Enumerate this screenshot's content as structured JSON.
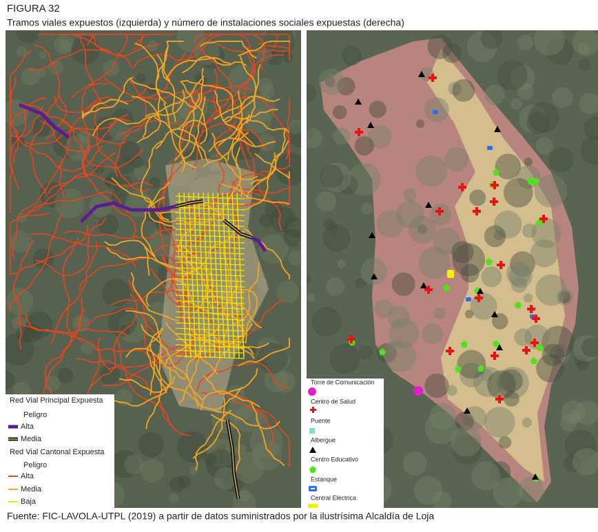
{
  "header": {
    "title": "FIGURA 32",
    "subtitle": "Tramos viales expuestos (izquierda) y número de instalaciones sociales expuestas (derecha)"
  },
  "left_map": {
    "legend": {
      "groups": [
        {
          "title": "Red Vial Principal Expuesta",
          "subtitle": "Peligro",
          "items": [
            "Alta",
            "Media"
          ]
        },
        {
          "title": "Red Vial Cantonal Expuesta",
          "subtitle": "Peligro",
          "items": [
            "Alta",
            "Media",
            "Baja"
          ]
        }
      ]
    }
  },
  "right_map": {
    "legend": {
      "items": [
        "Torre de Comunicación",
        "Centro de Salud",
        "Puente",
        "Albergue",
        "Centro Educativo",
        "Estanque",
        "Central Eléctrica"
      ]
    }
  },
  "source": "Fuente: FIC-LAVOLA-UTPL (2019) a partir de datos suministrados por la ilustrísima Alcaldía de Loja"
}
